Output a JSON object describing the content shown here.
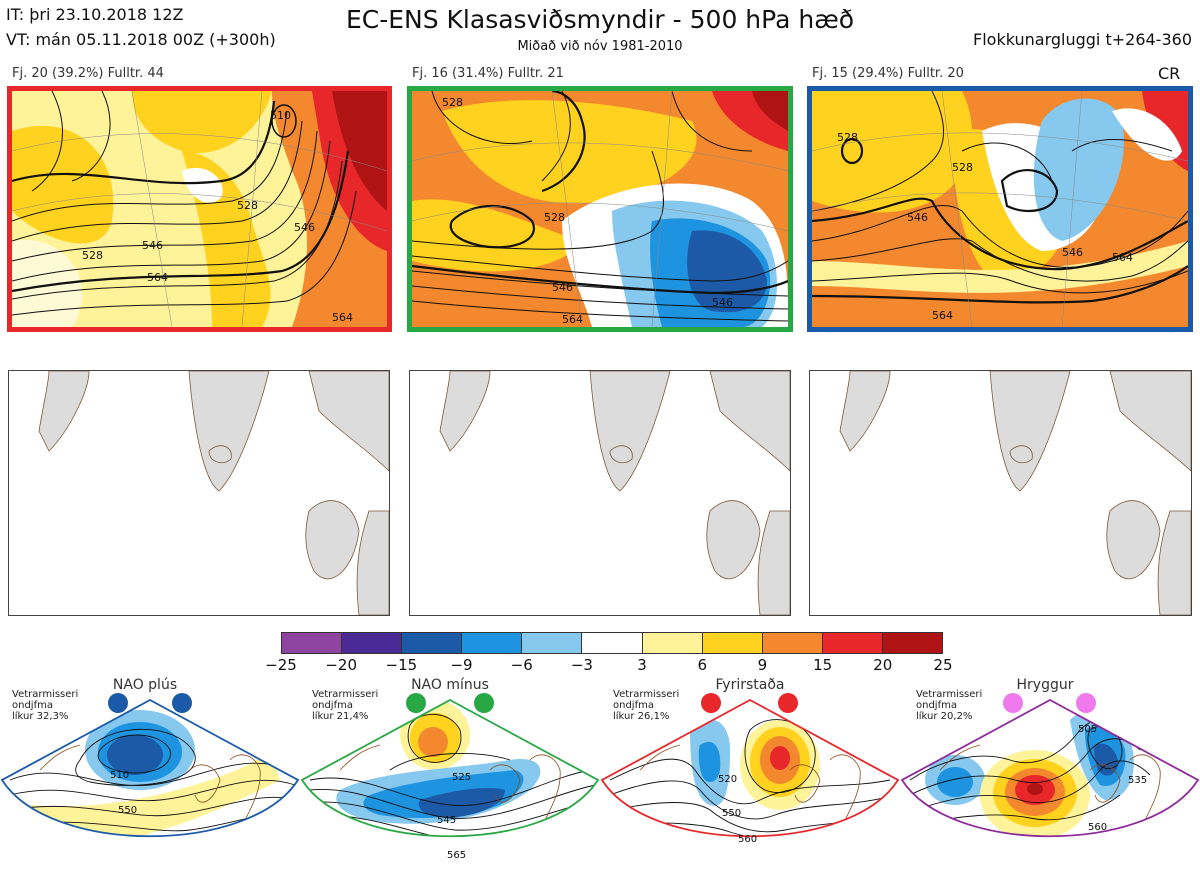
{
  "header": {
    "it_line": "IT: þri 23.10.2018 12Z",
    "vt_line": "VT: mán 05.11.2018 00Z  (+300h)",
    "title": "EC-ENS Klasasviðsmyndir - 500 hPa hæð",
    "subtitle": "Miðað við nóv 1981-2010",
    "window": "Flokkunargluggi t+264-360",
    "cr": "CR"
  },
  "clusters": [
    {
      "caption": "Fj. 20 (39.2%)   Fulltr. 44",
      "border_color": "#e8272a",
      "contour_labels": [
        "528",
        "528",
        "546",
        "546",
        "564",
        "564",
        "510"
      ]
    },
    {
      "caption": "Fj. 16 (31.4%)   Fulltr. 21",
      "border_color": "#27a845",
      "contour_labels": [
        "528",
        "528",
        "546",
        "546",
        "564"
      ]
    },
    {
      "caption": "Fj. 15 (29.4%)   Fulltr. 20",
      "border_color": "#1a5aa8",
      "contour_labels": [
        "528",
        "528",
        "546",
        "546",
        "564",
        "564"
      ]
    }
  ],
  "colorbar": {
    "colors": [
      "#8e44a0",
      "#4a2a94",
      "#1c5aa8",
      "#1e94e0",
      "#86c8ee",
      "#ffffff",
      "#fff39a",
      "#ffd21f",
      "#f3882e",
      "#e8272a",
      "#b01313"
    ],
    "ticks": [
      "−25",
      "−20",
      "−15",
      "−9",
      "−6",
      "−3",
      "3",
      "6",
      "9",
      "15",
      "20",
      "25"
    ]
  },
  "regimes": [
    {
      "title": "NAO plús",
      "note": [
        "Vetrarmisseri",
        "ondjfma",
        "líkur 32,3%"
      ],
      "color": "#1a5aa8",
      "labels": [
        "510",
        "550"
      ]
    },
    {
      "title": "NAO mínus",
      "note": [
        "Vetrarmisseri",
        "ondjfma",
        "líkur 21,4%"
      ],
      "color": "#27a845",
      "labels": [
        "525",
        "545",
        "565"
      ]
    },
    {
      "title": "Fyrirstaða",
      "note": [
        "Vetrarmisseri",
        "ondjfma",
        "líkur 26,1%"
      ],
      "color": "#e8272a",
      "labels": [
        "520",
        "550",
        "560"
      ]
    },
    {
      "title": "Hryggur",
      "note": [
        "Vetrarmisseri",
        "ondjfma",
        "líkur 20,2%"
      ],
      "color": "#8e2a9a",
      "labels": [
        "505",
        "535",
        "560"
      ]
    }
  ]
}
